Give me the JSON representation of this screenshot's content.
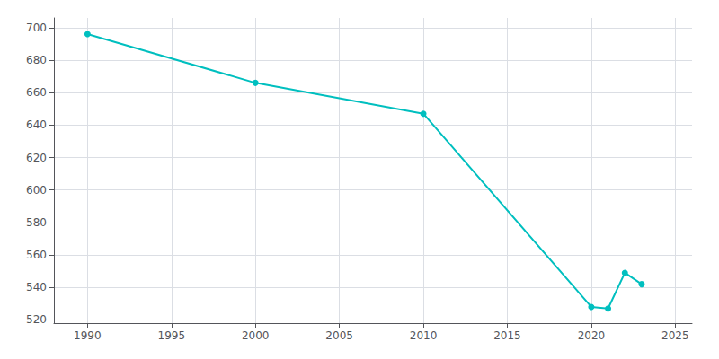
{
  "chart_data": {
    "type": "line",
    "x": [
      1990,
      2000,
      2010,
      2020,
      2021,
      2022,
      2023
    ],
    "values": [
      696,
      666,
      647,
      528,
      527,
      549,
      542
    ],
    "color": "#00BFBF",
    "marker": "circle",
    "xlim": [
      1988,
      2026
    ],
    "ylim": [
      518,
      706
    ],
    "xticks": [
      1990,
      1995,
      2000,
      2005,
      2010,
      2015,
      2020,
      2025
    ],
    "yticks": [
      520,
      540,
      560,
      580,
      600,
      620,
      640,
      660,
      680,
      700
    ],
    "grid": true
  }
}
